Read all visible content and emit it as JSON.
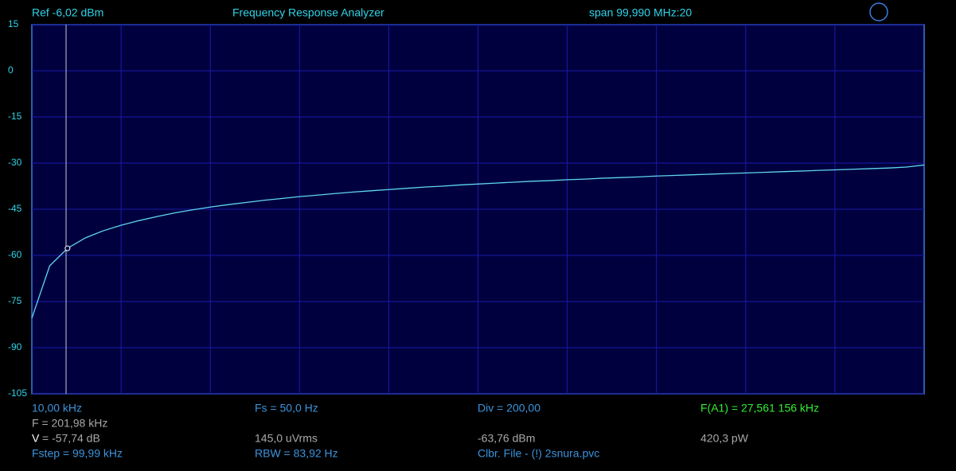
{
  "header": {
    "ref": "Ref  -6,02 dBm",
    "title": "Frequency Response Analyzer",
    "span": "span 99,990 MHz:20"
  },
  "chart_data": {
    "type": "line",
    "values": [
      -80.4,
      -63.4,
      -57.7,
      -54.3,
      -52.0,
      -50.2,
      -48.7,
      -47.4,
      -46.2,
      -45.2,
      -44.3,
      -43.5,
      -42.8,
      -42.1,
      -41.5,
      -40.9,
      -40.4,
      -39.9,
      -39.4,
      -39.0,
      -38.6,
      -38.2,
      -37.8,
      -37.5,
      -37.1,
      -36.8,
      -36.5,
      -36.2,
      -35.9,
      -35.7,
      -35.4,
      -35.2,
      -34.9,
      -34.7,
      -34.5,
      -34.2,
      -34.0,
      -33.8,
      -33.6,
      -33.4,
      -33.2,
      -33.0,
      -32.8,
      -32.6,
      -32.4,
      -32.2,
      -32.0,
      -31.8,
      -31.6,
      -31.3,
      -30.6
    ],
    "color": "#5fd6ee",
    "ylim": [
      -105,
      15
    ],
    "yticks": [
      15,
      0,
      -15,
      -30,
      -45,
      -60,
      -75,
      -90,
      -105
    ],
    "grid": true
  },
  "readouts": {
    "col1": [
      "10,00 kHz",
      "F = 201,98 kHz",
      "V",
      "= -57,74 dB",
      "Fstep = 99,99 kHz"
    ],
    "col2": [
      "Fs = 50,0 Hz",
      "145,0 uVrms",
      "RBW = 83,92 Hz"
    ],
    "col3": [
      "Div = 200,00",
      "-63,76 dBm",
      "Clbr. File - (!) 2snura.pvc"
    ],
    "col4": [
      "F(A1) = 27,561 156 kHz",
      "420,3 pW"
    ]
  }
}
